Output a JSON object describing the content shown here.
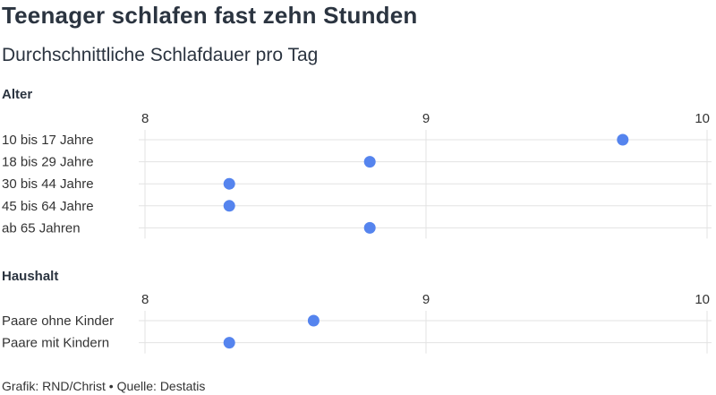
{
  "title": "Teenager schlafen fast zehn Stunden",
  "subtitle": "Durchschnittliche Schlafdauer pro Tag",
  "source": "Grafik: RND/Christ • Quelle: Destatis",
  "colors": {
    "dot": "#5584ee",
    "grid": "#e3e3e3",
    "text": "#333333",
    "title": "#2b3440"
  },
  "chart_data": [
    {
      "type": "scatter",
      "group_title": "Alter",
      "xlim": [
        8,
        10
      ],
      "xticks": [
        "8",
        "9",
        "10"
      ],
      "categories": [
        "10 bis 17 Jahre",
        "18 bis 29 Jahre",
        "30 bis 44 Jahre",
        "45 bis 64 Jahre",
        "ab 65 Jahren"
      ],
      "values": [
        9.7,
        8.8,
        8.3,
        8.3,
        8.8
      ],
      "grid": true
    },
    {
      "type": "scatter",
      "group_title": "Haushalt",
      "xlim": [
        8,
        10
      ],
      "xticks": [
        "8",
        "9",
        "10"
      ],
      "categories": [
        "Paare ohne Kinder",
        "Paare mit Kindern"
      ],
      "values": [
        8.6,
        8.3
      ],
      "grid": true
    }
  ]
}
